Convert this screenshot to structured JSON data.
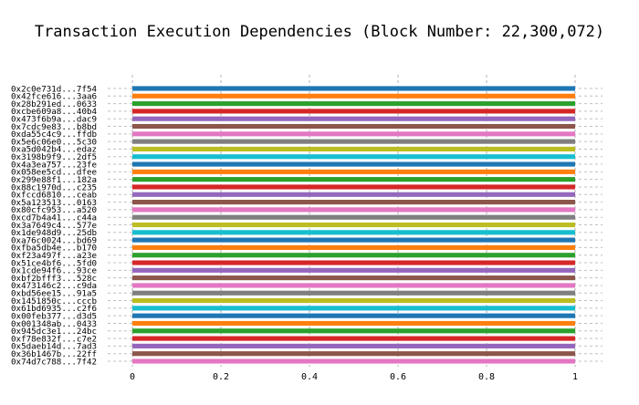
{
  "chart_data": {
    "type": "bar",
    "orientation": "horizontal",
    "title": "Transaction Execution Dependencies (Block Number: 22,300,072)",
    "xlabel": "",
    "ylabel": "",
    "xlim": [
      0,
      1
    ],
    "xticks": [
      "0",
      "0.2",
      "0.4",
      "0.6",
      "0.8",
      "1"
    ],
    "grid": true,
    "categories": [
      "0x2c0e731d...7f54",
      "0x42fce616...3aa6",
      "0x28b291ed...0633",
      "0xcbe609a8...40b4",
      "0x473f6b9a...dac9",
      "0x7cdc9e83...b8bd",
      "0xda55c4c9...ffdb",
      "0x5e6c06e0...5c30",
      "0xa5d042b4...edaz",
      "0x3198b9f9...2df5",
      "0x4a3ea757...23fe",
      "0x058ee5cd...dfee",
      "0x299e88f1...182a",
      "0x88c1970d...c235",
      "0xfccd6810...ceab",
      "0x5a123513...0163",
      "0x80cfc953...a520",
      "0xcd7b4a41...c44a",
      "0x3a7649c4...577e",
      "0x1de948d9...25db",
      "0xa76c0024...bd69",
      "0xfba5db4e...b170",
      "0xf23a497f...a23e",
      "0x51ce4bf6...5fd0",
      "0x1cde94f6...93ce",
      "0xbf2bfff3...528c",
      "0x473146c2...c9da",
      "0xbd56ee15...91a5",
      "0x1451850c...cccb",
      "0x61bd6935...c2f6",
      "0x00feb377...d3d5",
      "0x001348ab...0433",
      "0x945dc3e1...24bc",
      "0xf78e832f...c7e2",
      "0x5daeb14d...7ad3",
      "0x36b1467b...22ff",
      "0x74d7c788...7f42"
    ],
    "values": [
      1,
      1,
      1,
      1,
      1,
      1,
      1,
      1,
      1,
      1,
      1,
      1,
      1,
      1,
      1,
      1,
      1,
      1,
      1,
      1,
      1,
      1,
      1,
      1,
      1,
      1,
      1,
      1,
      1,
      1,
      1,
      1,
      1,
      1,
      1,
      1,
      1
    ],
    "colors": [
      "#1f77b4",
      "#ff7f0e",
      "#2ca02c",
      "#d62728",
      "#9467bd",
      "#8c564b",
      "#e377c2",
      "#7f7f7f",
      "#bcbd22",
      "#17becf"
    ]
  }
}
